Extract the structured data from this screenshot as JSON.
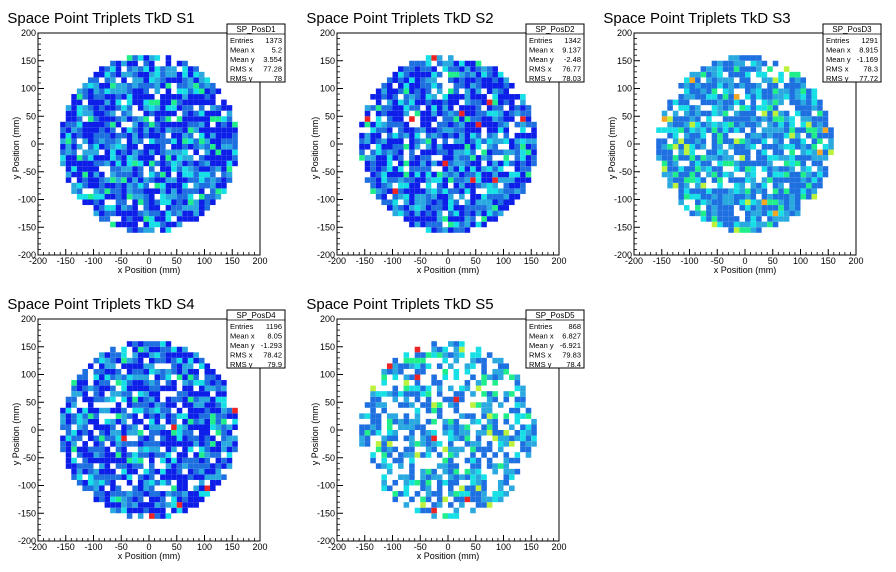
{
  "page": {
    "background": "#ffffff"
  },
  "colors": {
    "palette": [
      "#0d1ee8",
      "#1e6fe0",
      "#2aa8e0",
      "#16e0e6",
      "#20ee8a",
      "#bdf23c",
      "#f5a623",
      "#ee2424"
    ]
  },
  "chart_data": [
    {
      "type": "heatmap",
      "title": "Space Point Triplets TkD S1",
      "xlabel": "x Position (mm)",
      "ylabel": "y Position (mm)",
      "xlim": [
        -200,
        200
      ],
      "ylim": [
        -200,
        200
      ],
      "x_ticks": [
        -200,
        -150,
        -100,
        -50,
        0,
        50,
        100,
        150,
        200
      ],
      "y_ticks": [
        -200,
        -150,
        -100,
        -50,
        0,
        50,
        100,
        150,
        200
      ],
      "bin_width": 10,
      "fill_radius": 160,
      "occupancy": 0.9,
      "stats": {
        "name": "SP_PosD1",
        "rows": [
          {
            "label": "Entries",
            "value": "1373"
          },
          {
            "label": "Mean x",
            "value": "5.2"
          },
          {
            "label": "Mean y",
            "value": "3.554"
          },
          {
            "label": "RMS x",
            "value": "77.28"
          },
          {
            "label": "RMS y",
            "value": "78"
          }
        ]
      },
      "dominant_colors": [
        "#0d1ee8",
        "#1e6fe0",
        "#2aa8e0",
        "#16e0e6",
        "#20ee8a"
      ]
    },
    {
      "type": "heatmap",
      "title": "Space Point Triplets TkD S2",
      "xlabel": "x Position (mm)",
      "ylabel": "y Position (mm)",
      "xlim": [
        -200,
        200
      ],
      "ylim": [
        -200,
        200
      ],
      "x_ticks": [
        -200,
        -150,
        -100,
        -50,
        0,
        50,
        100,
        150,
        200
      ],
      "y_ticks": [
        -200,
        -150,
        -100,
        -50,
        0,
        50,
        100,
        150,
        200
      ],
      "bin_width": 10,
      "fill_radius": 160,
      "occupancy": 0.88,
      "stats": {
        "name": "SP_PosD2",
        "rows": [
          {
            "label": "Entries",
            "value": "1342"
          },
          {
            "label": "Mean x",
            "value": "9.137"
          },
          {
            "label": "Mean y",
            "value": "-2.48"
          },
          {
            "label": "RMS x",
            "value": "76.77"
          },
          {
            "label": "RMS y",
            "value": "78.03"
          }
        ]
      },
      "dominant_colors": [
        "#0d1ee8",
        "#1e6fe0",
        "#2aa8e0",
        "#16e0e6",
        "#20ee8a",
        "#ee2424"
      ]
    },
    {
      "type": "heatmap",
      "title": "Space Point Triplets TkD S3",
      "xlabel": "x Position (mm)",
      "ylabel": "y Position (mm)",
      "xlim": [
        -200,
        200
      ],
      "ylim": [
        -200,
        200
      ],
      "x_ticks": [
        -200,
        -150,
        -100,
        -50,
        0,
        50,
        100,
        150,
        200
      ],
      "y_ticks": [
        -200,
        -150,
        -100,
        -50,
        0,
        50,
        100,
        150,
        200
      ],
      "bin_width": 10,
      "fill_radius": 158,
      "occupancy": 0.85,
      "stats": {
        "name": "SP_PosD3",
        "rows": [
          {
            "label": "Entries",
            "value": "1291"
          },
          {
            "label": "Mean x",
            "value": "8.915"
          },
          {
            "label": "Mean y",
            "value": "-1.169"
          },
          {
            "label": "RMS x",
            "value": "78.3"
          },
          {
            "label": "RMS y",
            "value": "77.72"
          }
        ]
      },
      "dominant_colors": [
        "#1e6fe0",
        "#2aa8e0",
        "#16e0e6",
        "#20ee8a",
        "#bdf23c",
        "#f5a623"
      ]
    },
    {
      "type": "heatmap",
      "title": "Space Point Triplets TkD S4",
      "xlabel": "x Position (mm)",
      "ylabel": "y Position (mm)",
      "xlim": [
        -200,
        200
      ],
      "ylim": [
        -200,
        200
      ],
      "x_ticks": [
        -200,
        -150,
        -100,
        -50,
        0,
        50,
        100,
        150,
        200
      ],
      "y_ticks": [
        -200,
        -150,
        -100,
        -50,
        0,
        50,
        100,
        150,
        200
      ],
      "bin_width": 10,
      "fill_radius": 160,
      "occupancy": 0.82,
      "stats": {
        "name": "SP_PosD4",
        "rows": [
          {
            "label": "Entries",
            "value": "1196"
          },
          {
            "label": "Mean x",
            "value": "8.05"
          },
          {
            "label": "Mean y",
            "value": "-1.293"
          },
          {
            "label": "RMS x",
            "value": "78.42"
          },
          {
            "label": "RMS y",
            "value": "79.9"
          }
        ]
      },
      "dominant_colors": [
        "#0d1ee8",
        "#1e6fe0",
        "#2aa8e0",
        "#16e0e6",
        "#20ee8a",
        "#bdf23c",
        "#ee2424"
      ]
    },
    {
      "type": "heatmap",
      "title": "Space Point Triplets TkD S5",
      "xlabel": "x Position (mm)",
      "ylabel": "y Position (mm)",
      "xlim": [
        -200,
        200
      ],
      "ylim": [
        -200,
        200
      ],
      "x_ticks": [
        -200,
        -150,
        -100,
        -50,
        0,
        50,
        100,
        150,
        200
      ],
      "y_ticks": [
        -200,
        -150,
        -100,
        -50,
        0,
        50,
        100,
        150,
        200
      ],
      "bin_width": 10,
      "fill_radius": 158,
      "occupancy": 0.62,
      "stats": {
        "name": "SP_PosD5",
        "rows": [
          {
            "label": "Entries",
            "value": "868"
          },
          {
            "label": "Mean x",
            "value": "6.827"
          },
          {
            "label": "Mean y",
            "value": "-6.921"
          },
          {
            "label": "RMS x",
            "value": "79.83"
          },
          {
            "label": "RMS y",
            "value": "78.4"
          }
        ]
      },
      "dominant_colors": [
        "#1e6fe0",
        "#2aa8e0",
        "#16e0e6",
        "#20ee8a",
        "#bdf23c",
        "#f5a623",
        "#ee2424"
      ]
    }
  ]
}
